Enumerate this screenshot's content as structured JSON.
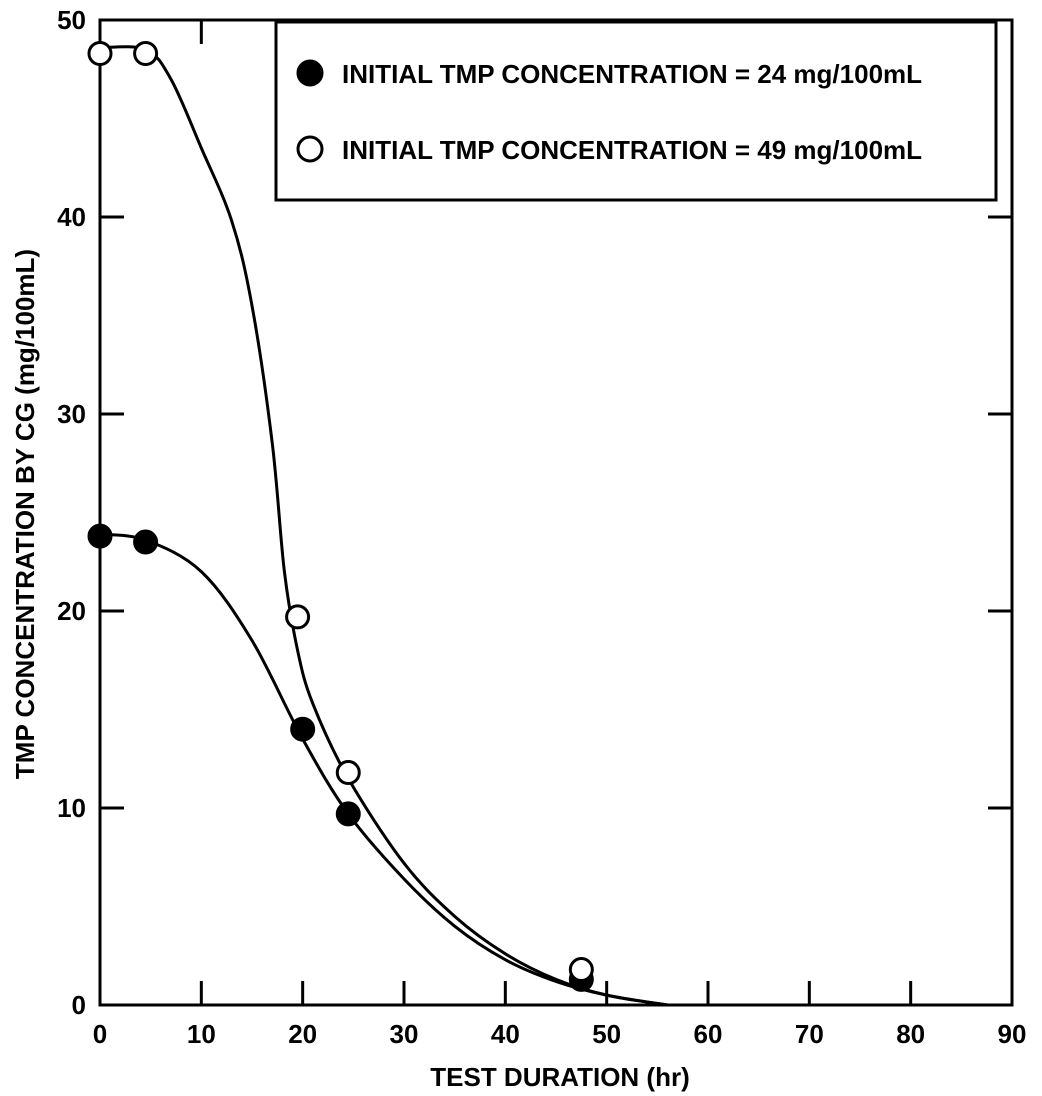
{
  "chart_data": {
    "type": "scatter",
    "xlabel": "TEST DURATION (hr)",
    "ylabel": "TMP CONCENTRATION BY CG (mg/100mL)",
    "xlim": [
      0,
      90
    ],
    "ylim": [
      0,
      50
    ],
    "x_ticks": [
      "0",
      "10",
      "20",
      "30",
      "40",
      "50",
      "60",
      "70",
      "80",
      "90"
    ],
    "y_ticks": [
      "0",
      "10",
      "20",
      "30",
      "40",
      "50"
    ],
    "grid": false,
    "legend_position": "top-right",
    "series": [
      {
        "name": "INITIAL TMP CONCENTRATION = 24 mg/100mL",
        "marker": "filled-circle",
        "color": "#000000",
        "points": [
          [
            0,
            23.8
          ],
          [
            4.5,
            23.5
          ],
          [
            20,
            14
          ],
          [
            24.5,
            9.7
          ],
          [
            47.5,
            1.3
          ]
        ],
        "curve": [
          [
            0,
            23.9
          ],
          [
            4.5,
            23.6
          ],
          [
            10,
            22
          ],
          [
            15,
            18.5
          ],
          [
            20,
            13.5
          ],
          [
            24.5,
            9.7
          ],
          [
            30,
            6.4
          ],
          [
            35,
            4
          ],
          [
            40,
            2.3
          ],
          [
            45,
            1.2
          ],
          [
            50,
            0.5
          ],
          [
            56,
            0
          ]
        ]
      },
      {
        "name": "INITIAL TMP CONCENTRATION = 49 mg/100mL",
        "marker": "open-circle",
        "color": "#000000",
        "points": [
          [
            0,
            48.3
          ],
          [
            4.5,
            48.3
          ],
          [
            19.5,
            19.7
          ],
          [
            24.5,
            11.8
          ],
          [
            47.5,
            1.8
          ]
        ],
        "curve": [
          [
            0,
            48.6
          ],
          [
            4.5,
            48.5
          ],
          [
            7,
            47
          ],
          [
            10,
            43.5
          ],
          [
            13,
            39.8
          ],
          [
            15,
            35.5
          ],
          [
            17,
            28.5
          ],
          [
            18.2,
            22
          ],
          [
            19.5,
            18
          ],
          [
            21,
            15.3
          ],
          [
            24.5,
            11.5
          ],
          [
            30,
            7.2
          ],
          [
            35,
            4.5
          ],
          [
            40,
            2.6
          ],
          [
            45,
            1.3
          ],
          [
            50,
            0.5
          ],
          [
            56,
            0
          ]
        ]
      }
    ]
  }
}
